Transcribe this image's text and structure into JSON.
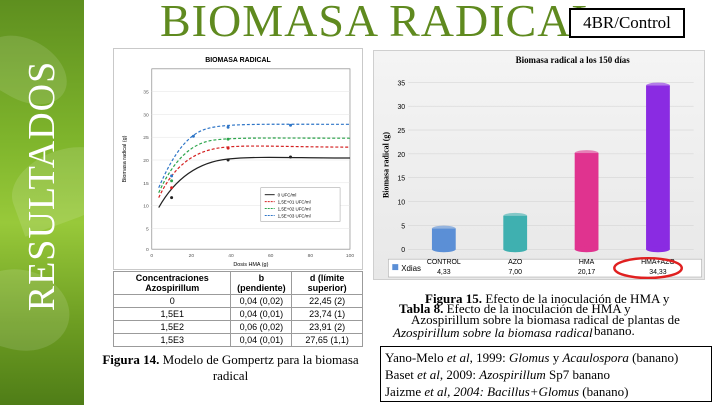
{
  "side_label": "RESULTADOS",
  "title": "BIOMASA RADICAL",
  "tag": "4BR/Control",
  "left_chart": {
    "title": "BIOMASA RADICAL",
    "ylabel": "Biomasa radical (g)",
    "xlabel": "Dosis HMA (g)",
    "legend": [
      "0 UFC/ml",
      "1,5E+01 UFC/ml",
      "1,5E+02 UFC/ml",
      "1,5E+03 UFC/ml"
    ]
  },
  "table": {
    "headers": [
      "Concentraciones Azospirillum",
      "b (pendiente)",
      "d (límite superior)"
    ],
    "rows": [
      [
        "0",
        "0,04 (0,02)",
        "22,45 (2)"
      ],
      [
        "1,5E1",
        "0,04 (0,01)",
        "23,74 (1)"
      ],
      [
        "1,5E2",
        "0,06 (0,02)",
        "23,91 (2)"
      ],
      [
        "1,5E3",
        "0,04 (0,01)",
        "27,65 (1,1)"
      ]
    ]
  },
  "fig14": {
    "label": "Figura 14.",
    "text": " Modelo de Gompertz para la biomasa radical"
  },
  "right_chart": {
    "title": "Biomasa radical a los 150 días",
    "ylabel": "Biomasa radical (g)",
    "legend_label": "Xdias",
    "chart_data": {
      "type": "bar",
      "categories": [
        "CONTROL",
        "AZO",
        "HMA",
        "HMA+AZO"
      ],
      "values": [
        4.33,
        7.0,
        20.17,
        34.33
      ],
      "value_labels": [
        "4,33",
        "7,00",
        "20,17",
        "34,33"
      ],
      "yticks": [
        0,
        5,
        10,
        15,
        20,
        25,
        30,
        35
      ],
      "ylim": [
        0,
        37
      ],
      "colors": [
        "#5b8fd6",
        "#3fb0b0",
        "#e0338f",
        "#8a2be2"
      ]
    }
  },
  "fig15": {
    "label": "Figura 15.",
    "text_l1": " Efecto de la inoculación de HMA y",
    "text_l2": "Azospirillum sobre la biomasa radical"
  },
  "tabla8": {
    "label": "Tabla 8.",
    "text_l1": " Efecto de la inoculación de HMA y",
    "text_l2": "Azospirillum sobre la biomasa radical de plantas de",
    "text_l3": "banano."
  },
  "refs": [
    {
      "pre": "Yano-Melo ",
      "it": "et al",
      "mid": ", 1999: ",
      "sp": "Glomus",
      "post": " y ",
      "sp2": "Acaulospora",
      "tail": " (banano)"
    },
    {
      "pre": "Baset ",
      "it": "et al",
      "mid": ", 2009: ",
      "sp": "Azospirillum",
      "post": " Sp7 banano",
      "sp2": "",
      "tail": ""
    },
    {
      "pre": "Jaizme ",
      "it": "et al, 2004: ",
      "mid": "",
      "sp": "Bacillus+Glomus",
      "post": " (banano)",
      "sp2": "",
      "tail": ""
    }
  ]
}
